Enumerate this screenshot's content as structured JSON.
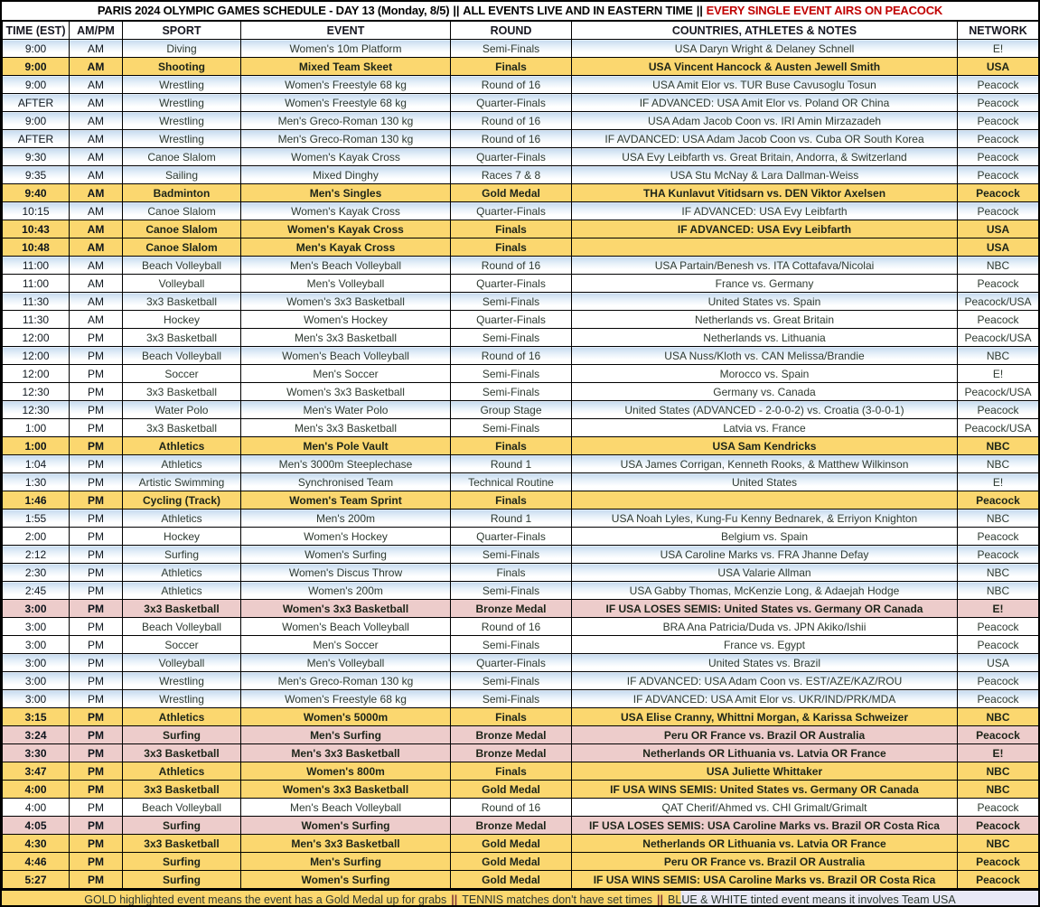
{
  "title": {
    "separator": "||",
    "segments": [
      "PARIS 2024 OLYMPIC GAMES SCHEDULE - DAY 13 (Monday, 8/5)",
      "ALL EVENTS LIVE AND IN EASTERN TIME",
      "EVERY SINGLE EVENT AIRS ON PEACOCK"
    ]
  },
  "colors": {
    "gold_row": "#FBD76F",
    "pink_row": "#EDCCCB",
    "usa_blue_tint": "#C6DAEF",
    "title_red": "#C00000",
    "footer_lavender": "#E9E9F6",
    "footer_separator": "#833C3C"
  },
  "columns": [
    "TIME (EST)",
    "AM/PM",
    "SPORT",
    "EVENT",
    "ROUND",
    "COUNTRIES, ATHLETES & NOTES",
    "NETWORK"
  ],
  "column_keys": [
    "time",
    "ampm",
    "sport",
    "event",
    "round",
    "notes",
    "network"
  ],
  "rows": [
    {
      "style": "usa",
      "cells": [
        "9:00",
        "AM",
        "Diving",
        "Women's 10m Platform",
        "Semi-Finals",
        "USA Daryn Wright & Delaney Schnell",
        "E!"
      ]
    },
    {
      "style": "gold",
      "cells": [
        "9:00",
        "AM",
        "Shooting",
        "Mixed Team Skeet",
        "Finals",
        "USA Vincent Hancock & Austen Jewell Smith",
        "USA"
      ]
    },
    {
      "style": "usa",
      "cells": [
        "9:00",
        "AM",
        "Wrestling",
        "Women's Freestyle 68 kg",
        "Round of 16",
        "USA Amit Elor vs. TUR Buse Cavusoglu Tosun",
        "Peacock"
      ]
    },
    {
      "style": "usa",
      "cells": [
        "AFTER",
        "AM",
        "Wrestling",
        "Women's Freestyle 68 kg",
        "Quarter-Finals",
        "IF ADVANCED: USA Amit Elor vs. Poland OR China",
        "Peacock"
      ]
    },
    {
      "style": "usa",
      "cells": [
        "9:00",
        "AM",
        "Wrestling",
        "Men's Greco-Roman 130 kg",
        "Round of 16",
        "USA Adam Jacob Coon vs. IRI Amin Mirzazadeh",
        "Peacock"
      ]
    },
    {
      "style": "usa",
      "cells": [
        "AFTER",
        "AM",
        "Wrestling",
        "Men's Greco-Roman 130 kg",
        "Round of 16",
        "IF AVDANCED: USA Adam Jacob Coon vs. Cuba OR South Korea",
        "Peacock"
      ]
    },
    {
      "style": "usa",
      "cells": [
        "9:30",
        "AM",
        "Canoe Slalom",
        "Women's Kayak Cross",
        "Quarter-Finals",
        "USA Evy Leibfarth vs. Great Britain, Andorra, & Switzerland",
        "Peacock"
      ]
    },
    {
      "style": "usa",
      "cells": [
        "9:35",
        "AM",
        "Sailing",
        "Mixed Dinghy",
        "Races 7 & 8",
        "USA Stu McNay & Lara Dallman-Weiss",
        "Peacock"
      ]
    },
    {
      "style": "gold",
      "cells": [
        "9:40",
        "AM",
        "Badminton",
        "Men's Singles",
        "Gold Medal",
        "THA Kunlavut Vitidsarn vs. DEN Viktor Axelsen",
        "Peacock"
      ]
    },
    {
      "style": "usa",
      "cells": [
        "10:15",
        "AM",
        "Canoe Slalom",
        "Women's Kayak Cross",
        "Quarter-Finals",
        "IF ADVANCED: USA Evy Leibfarth",
        "Peacock"
      ]
    },
    {
      "style": "gold",
      "cells": [
        "10:43",
        "AM",
        "Canoe Slalom",
        "Women's Kayak Cross",
        "Finals",
        "IF ADVANCED: USA Evy Leibfarth",
        "USA"
      ]
    },
    {
      "style": "gold",
      "cells": [
        "10:48",
        "AM",
        "Canoe Slalom",
        "Men's Kayak Cross",
        "Finals",
        "",
        "USA"
      ]
    },
    {
      "style": "usa",
      "cells": [
        "11:00",
        "AM",
        "Beach Volleyball",
        "Men's Beach Volleyball",
        "Round of 16",
        "USA Partain/Benesh vs. ITA Cottafava/Nicolai",
        "NBC"
      ]
    },
    {
      "style": "plain",
      "cells": [
        "11:00",
        "AM",
        "Volleyball",
        "Men's Volleyball",
        "Quarter-Finals",
        "France vs. Germany",
        "Peacock"
      ]
    },
    {
      "style": "usa",
      "cells": [
        "11:30",
        "AM",
        "3x3 Basketball",
        "Women's 3x3 Basketball",
        "Semi-Finals",
        "United States vs. Spain",
        "Peacock/USA"
      ]
    },
    {
      "style": "plain",
      "cells": [
        "11:30",
        "AM",
        "Hockey",
        "Women's Hockey",
        "Quarter-Finals",
        "Netherlands vs. Great Britain",
        "Peacock"
      ]
    },
    {
      "style": "plain",
      "cells": [
        "12:00",
        "PM",
        "3x3 Basketball",
        "Men's 3x3 Basketball",
        "Semi-Finals",
        "Netherlands vs. Lithuania",
        "Peacock/USA"
      ]
    },
    {
      "style": "usa",
      "cells": [
        "12:00",
        "PM",
        "Beach Volleyball",
        "Women's Beach Volleyball",
        "Round of 16",
        "USA Nuss/Kloth vs. CAN Melissa/Brandie",
        "NBC"
      ]
    },
    {
      "style": "plain",
      "cells": [
        "12:00",
        "PM",
        "Soccer",
        "Men's Soccer",
        "Semi-Finals",
        "Morocco vs. Spain",
        "E!"
      ]
    },
    {
      "style": "plain",
      "cells": [
        "12:30",
        "PM",
        "3x3 Basketball",
        "Women's 3x3 Basketball",
        "Semi-Finals",
        "Germany vs. Canada",
        "Peacock/USA"
      ]
    },
    {
      "style": "usa",
      "cells": [
        "12:30",
        "PM",
        "Water Polo",
        "Men's Water Polo",
        "Group Stage",
        "United States (ADVANCED - 2-0-0-2) vs. Croatia (3-0-0-1)",
        "Peacock"
      ]
    },
    {
      "style": "plain",
      "cells": [
        "1:00",
        "PM",
        "3x3 Basketball",
        "Men's 3x3 Basketball",
        "Semi-Finals",
        "Latvia vs. France",
        "Peacock/USA"
      ]
    },
    {
      "style": "gold",
      "cells": [
        "1:00",
        "PM",
        "Athletics",
        "Men's Pole Vault",
        "Finals",
        "USA Sam Kendricks",
        "NBC"
      ]
    },
    {
      "style": "usa",
      "cells": [
        "1:04",
        "PM",
        "Athletics",
        "Men's 3000m Steeplechase",
        "Round 1",
        "USA James Corrigan, Kenneth Rooks, & Matthew Wilkinson",
        "NBC"
      ]
    },
    {
      "style": "usa",
      "cells": [
        "1:30",
        "PM",
        "Artistic Swimming",
        "Synchronised Team",
        "Technical Routine",
        "United States",
        "E!"
      ]
    },
    {
      "style": "gold",
      "cells": [
        "1:46",
        "PM",
        "Cycling (Track)",
        "Women's Team Sprint",
        "Finals",
        "",
        "Peacock"
      ]
    },
    {
      "style": "usa",
      "cells": [
        "1:55",
        "PM",
        "Athletics",
        "Men's 200m",
        "Round 1",
        "USA Noah Lyles, Kung-Fu Kenny Bednarek, & Erriyon Knighton",
        "NBC"
      ]
    },
    {
      "style": "plain",
      "cells": [
        "2:00",
        "PM",
        "Hockey",
        "Women's Hockey",
        "Quarter-Finals",
        "Belgium vs. Spain",
        "Peacock"
      ]
    },
    {
      "style": "usa",
      "cells": [
        "2:12",
        "PM",
        "Surfing",
        "Women's Surfing",
        "Semi-Finals",
        "USA Caroline Marks vs. FRA Jhanne Defay",
        "Peacock"
      ]
    },
    {
      "style": "usa",
      "cells": [
        "2:30",
        "PM",
        "Athletics",
        "Women's Discus Throw",
        "Finals",
        "USA Valarie Allman",
        "NBC"
      ]
    },
    {
      "style": "usa",
      "cells": [
        "2:45",
        "PM",
        "Athletics",
        "Women's 200m",
        "Semi-Finals",
        "USA Gabby Thomas, McKenzie Long, & Adaejah Hodge",
        "NBC"
      ]
    },
    {
      "style": "pink",
      "cells": [
        "3:00",
        "PM",
        "3x3 Basketball",
        "Women's 3x3 Basketball",
        "Bronze Medal",
        "IF USA LOSES SEMIS: United States vs. Germany OR Canada",
        "E!"
      ]
    },
    {
      "style": "plain",
      "cells": [
        "3:00",
        "PM",
        "Beach Volleyball",
        "Women's Beach Volleyball",
        "Round of 16",
        "BRA Ana Patricia/Duda vs. JPN Akiko/Ishii",
        "Peacock"
      ]
    },
    {
      "style": "plain",
      "cells": [
        "3:00",
        "PM",
        "Soccer",
        "Men's Soccer",
        "Semi-Finals",
        "France vs. Egypt",
        "Peacock"
      ]
    },
    {
      "style": "usa",
      "cells": [
        "3:00",
        "PM",
        "Volleyball",
        "Men's Volleyball",
        "Quarter-Finals",
        "United States vs. Brazil",
        "USA"
      ]
    },
    {
      "style": "usa",
      "cells": [
        "3:00",
        "PM",
        "Wrestling",
        "Men's Greco-Roman 130 kg",
        "Semi-Finals",
        "IF ADVANCED: USA Adam Coon vs. EST/AZE/KAZ/ROU",
        "Peacock"
      ]
    },
    {
      "style": "usa",
      "cells": [
        "3:00",
        "PM",
        "Wrestling",
        "Women's Freestyle 68 kg",
        "Semi-Finals",
        "IF ADVANCED: USA Amit Elor vs. UKR/IND/PRK/MDA",
        "Peacock"
      ]
    },
    {
      "style": "gold",
      "cells": [
        "3:15",
        "PM",
        "Athletics",
        "Women's 5000m",
        "Finals",
        "USA Elise Cranny, Whittni Morgan, & Karissa Schweizer",
        "NBC"
      ]
    },
    {
      "style": "pink",
      "cells": [
        "3:24",
        "PM",
        "Surfing",
        "Men's Surfing",
        "Bronze Medal",
        "Peru OR France vs. Brazil OR Australia",
        "Peacock"
      ]
    },
    {
      "style": "pink",
      "cells": [
        "3:30",
        "PM",
        "3x3 Basketball",
        "Men's 3x3 Basketball",
        "Bronze Medal",
        "Netherlands OR Lithuania vs. Latvia OR France",
        "E!"
      ]
    },
    {
      "style": "gold",
      "cells": [
        "3:47",
        "PM",
        "Athletics",
        "Women's 800m",
        "Finals",
        "USA Juliette Whittaker",
        "NBC"
      ]
    },
    {
      "style": "gold",
      "cells": [
        "4:00",
        "PM",
        "3x3 Basketball",
        "Women's 3x3 Basketball",
        "Gold Medal",
        "IF USA WINS SEMIS: United States vs. Germany OR Canada",
        "NBC"
      ]
    },
    {
      "style": "plain",
      "cells": [
        "4:00",
        "PM",
        "Beach Volleyball",
        "Men's Beach Volleyball",
        "Round of 16",
        "QAT Cherif/Ahmed vs. CHI Grimalt/Grimalt",
        "Peacock"
      ]
    },
    {
      "style": "pink",
      "cells": [
        "4:05",
        "PM",
        "Surfing",
        "Women's Surfing",
        "Bronze Medal",
        "IF USA LOSES SEMIS: USA Caroline Marks vs. Brazil OR Costa Rica",
        "Peacock"
      ]
    },
    {
      "style": "gold",
      "cells": [
        "4:30",
        "PM",
        "3x3 Basketball",
        "Men's 3x3 Basketball",
        "Gold Medal",
        "Netherlands OR Lithuania vs. Latvia OR France",
        "NBC"
      ]
    },
    {
      "style": "gold",
      "cells": [
        "4:46",
        "PM",
        "Surfing",
        "Men's Surfing",
        "Gold Medal",
        "Peru OR France vs. Brazil OR Australia",
        "Peacock"
      ]
    },
    {
      "style": "gold",
      "cells": [
        "5:27",
        "PM",
        "Surfing",
        "Women's Surfing",
        "Gold Medal",
        "IF USA WINS SEMIS: USA Caroline Marks vs. Brazil OR Costa Rica",
        "Peacock"
      ]
    }
  ],
  "footer": {
    "separator": "||",
    "segments": [
      "GOLD highlighted event means the event has a Gold Medal up for grabs",
      "TENNIS matches don't have set times",
      "BLUE & WHITE tinted event means it involves Team USA"
    ]
  }
}
